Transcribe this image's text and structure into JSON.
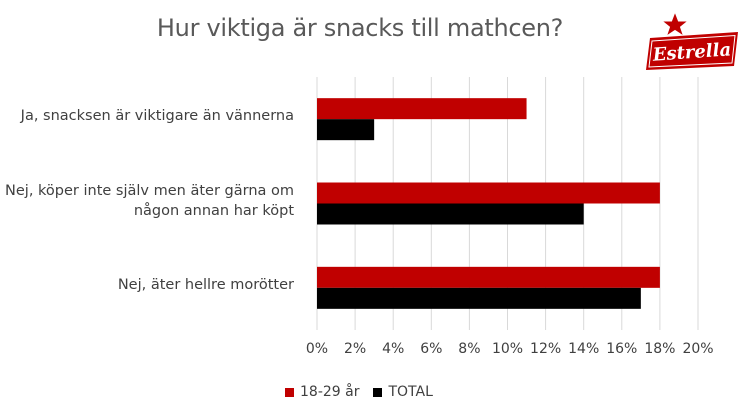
{
  "brand": {
    "logo_text": "Estrella",
    "accent": "#C00000"
  },
  "chart_data": {
    "type": "bar",
    "orientation": "horizontal",
    "title": "Hur viktiga är snacks till mathcen?",
    "categories": [
      "Ja, snacksen är viktigare än vännerna",
      "Nej, köper inte själv men äter gärna om någon annan har köpt",
      "Nej, äter hellre morötter"
    ],
    "category_lines": [
      [
        "Ja, snacksen är viktigare än vännerna"
      ],
      [
        "Nej, köper inte själv men äter gärna om",
        "någon annan har köpt"
      ],
      [
        "Nej, äter hellre morötter"
      ]
    ],
    "series": [
      {
        "name": "18-29 år",
        "color": "#C00000",
        "values": [
          11,
          18,
          18
        ]
      },
      {
        "name": "TOTAL",
        "color": "#000000",
        "values": [
          3,
          14,
          17
        ]
      }
    ],
    "xlim": [
      0,
      20
    ],
    "ticks": [
      0,
      2,
      4,
      6,
      8,
      10,
      12,
      14,
      16,
      18,
      20
    ],
    "tick_labels": [
      "0%",
      "2%",
      "4%",
      "6%",
      "8%",
      "10%",
      "12%",
      "14%",
      "16%",
      "18%",
      "20%"
    ],
    "unit": "%",
    "grid": true,
    "legend_position": "bottom"
  }
}
